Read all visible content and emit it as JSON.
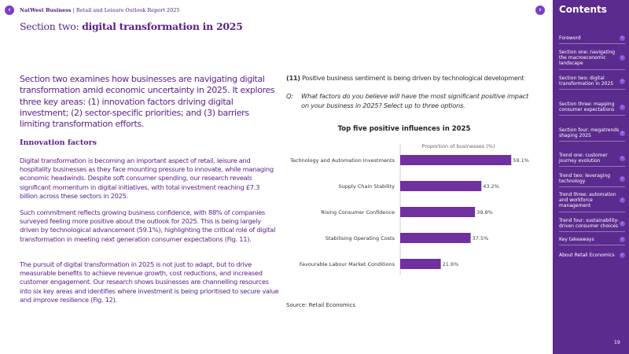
{
  "header": {
    "brand": "NatWest Business",
    "report": "Retail and Leisure Outlook Report 2025"
  },
  "title": {
    "prefix": "Section two:",
    "main": "digital transformation in 2025"
  },
  "intro": "Section two examines how businesses are navigating digital transformation amid economic uncertainty in 2025. It explores three key areas: (1) innovation factors driving digital investment; (2) sector-specific priorities; and (3) barriers limiting transformation efforts.",
  "subheading": "Innovation factors",
  "paragraphs": [
    "Digital transformation is becoming an important aspect of retail, leisure and hospitality businesses as they face mounting pressure to innovate, while managing economic headwinds. Despite soft consumer spending, our research reveals significant momentum in digital initiatives, with total investment reaching £7.3 billion across these sectors in 2025.",
    "Such commitment reflects growing business confidence, with 88% of companies surveyed feeling more positive about the outlook for 2025. This is being largely driven by technological advancement (59.1%), highlighting the critical role of digital transformation in meeting next generation consumer expectations (Fig. 11).",
    "The pursuit of digital transformation in 2025 is not just to adapt, but to drive measurable benefits to achieve revenue growth, cost reductions, and increased customer engagement. Our research shows businesses are channelling resources into six key areas and identifies where investment is being prioritised to secure value and improve resilience (Fig. 12)."
  ],
  "figure": {
    "number": "(11)",
    "caption": "Positive business sentiment is being driven by technological development",
    "q_label": "Q:",
    "question": "What factors do you believe will have the most significant positive impact on your business in 2025? Select up to three options.",
    "source": "Source: Retail Economics"
  },
  "chart_data": {
    "type": "bar",
    "orientation": "horizontal",
    "title": "Top five positive influences in 2025",
    "xlabel": "Proportion of businesses (%)",
    "categories": [
      "Technology and Automation Investments",
      "Supply Chain Stability",
      "Rising Consumer Confidence",
      "Stabilising Operating Costs",
      "Favourable Labour Market Conditions"
    ],
    "values": [
      59.1,
      43.2,
      39.8,
      37.5,
      21.6
    ],
    "labels": [
      "59.1%",
      "43.2%",
      "39.8%",
      "37.5%",
      "21.6%"
    ],
    "bar_color": "#7030a0",
    "grid": false
  },
  "sidebar": {
    "title": "Contents",
    "items": [
      "Foreword",
      "Section one: navigating the macroeconomic landscape",
      "Section two: digital transformation in 2025",
      "Section three: mapping consumer expectations",
      "Section four: megatrends shaping 2025",
      "Trend one: customer journey evolution",
      "Trend two: leveraging technology",
      "Trend three: automation and workforce management",
      "Trend four: sustainability-driven consumer choices",
      "Key takeaways",
      "About Retail Economics"
    ],
    "page": "19"
  },
  "colors": {
    "brand_purple": "#5c2b8e",
    "text_purple": "#5a1f8a",
    "accent": "#7a3dc8"
  }
}
